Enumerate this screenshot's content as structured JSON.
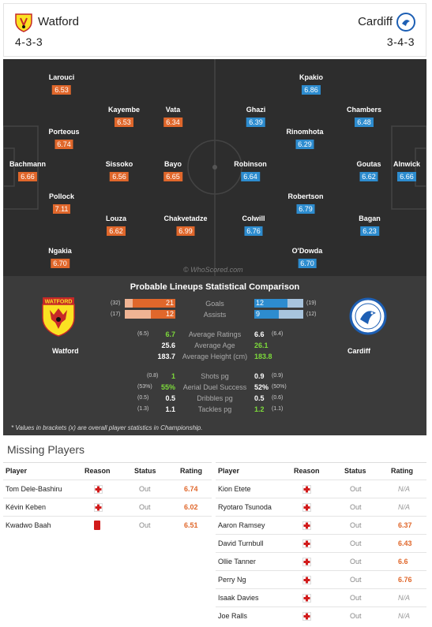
{
  "home": {
    "name": "Watford",
    "formation": "4-3-3",
    "players": [
      {
        "name": "Larouci",
        "rating": "6.53"
      },
      {
        "name": "Kayembe",
        "rating": "6.53"
      },
      {
        "name": "Vata",
        "rating": "6.34"
      },
      {
        "name": "Porteous",
        "rating": "6.74"
      },
      {
        "name": "Bachmann",
        "rating": "6.66"
      },
      {
        "name": "Sissoko",
        "rating": "6.56"
      },
      {
        "name": "Bayo",
        "rating": "6.65"
      },
      {
        "name": "Pollock",
        "rating": "7.11"
      },
      {
        "name": "Louza",
        "rating": "6.62"
      },
      {
        "name": "Chakvetadze",
        "rating": "6.99"
      },
      {
        "name": "Ngakia",
        "rating": "6.70"
      }
    ]
  },
  "away": {
    "name": "Cardiff",
    "formation": "3-4-3",
    "players": [
      {
        "name": "Kpakio",
        "rating": "6.86"
      },
      {
        "name": "Ghazi",
        "rating": "6.39"
      },
      {
        "name": "Chambers",
        "rating": "6.48"
      },
      {
        "name": "Rinomhota",
        "rating": "6.29"
      },
      {
        "name": "Robinson",
        "rating": "6.64"
      },
      {
        "name": "Goutas",
        "rating": "6.62"
      },
      {
        "name": "Alnwick",
        "rating": "6.66"
      },
      {
        "name": "Robertson",
        "rating": "6.79"
      },
      {
        "name": "Colwill",
        "rating": "6.76"
      },
      {
        "name": "Bagan",
        "rating": "6.23"
      },
      {
        "name": "O'Dowda",
        "rating": "6.70"
      }
    ]
  },
  "watermark": "© WhoScored.com",
  "comparison": {
    "title": "Probable Lineups Statistical Comparison",
    "home_label": "Watford",
    "away_label": "Cardiff",
    "bars": [
      {
        "label": "Goals",
        "home": 21,
        "home_overall": "(32)",
        "away": 12,
        "away_overall": "(19)"
      },
      {
        "label": "Assists",
        "home": 12,
        "home_overall": "(17)",
        "away": 9,
        "away_overall": "(12)"
      }
    ],
    "rows": [
      {
        "label": "Average Ratings",
        "home": "6.7",
        "home_overall": "(6.5)",
        "home_better": true,
        "away": "6.6",
        "away_overall": "(6.4)",
        "away_better": false
      },
      {
        "label": "Average Age",
        "home": "25.6",
        "home_overall": "",
        "home_better": false,
        "away": "26.1",
        "away_overall": "",
        "away_better": true
      },
      {
        "label": "Average Height (cm)",
        "home": "183.7",
        "home_overall": "",
        "home_better": false,
        "away": "183.8",
        "away_overall": "",
        "away_better": true
      },
      {
        "label": "Shots pg",
        "home": "1",
        "home_overall": "(0.8)",
        "home_better": true,
        "away": "0.9",
        "away_overall": "(0.9)",
        "away_better": false
      },
      {
        "label": "Aerial Duel Success",
        "home": "55%",
        "home_overall": "(53%)",
        "home_better": true,
        "away": "52%",
        "away_overall": "(50%)",
        "away_better": false
      },
      {
        "label": "Dribbles pg",
        "home": "0.5",
        "home_overall": "(0.5)",
        "home_better": false,
        "away": "0.5",
        "away_overall": "(0.6)",
        "away_better": false
      },
      {
        "label": "Tackles pg",
        "home": "1.1",
        "home_overall": "(1.3)",
        "home_better": false,
        "away": "1.2",
        "away_overall": "(1.1)",
        "away_better": true
      }
    ],
    "footnote": "* Values in brackets (x) are overall player statistics in Championship."
  },
  "missing": {
    "title": "Missing Players",
    "headers": {
      "player": "Player",
      "reason": "Reason",
      "status": "Status",
      "rating": "Rating"
    },
    "home": [
      {
        "player": "Tom Dele-Bashiru",
        "reason": "injury",
        "status": "Out",
        "rating": "6.74"
      },
      {
        "player": "Kévin Keben",
        "reason": "injury",
        "status": "Out",
        "rating": "6.02"
      },
      {
        "player": "Kwadwo Baah",
        "reason": "red-card",
        "status": "Out",
        "rating": "6.51"
      }
    ],
    "away": [
      {
        "player": "Kion Etete",
        "reason": "injury",
        "status": "Out",
        "rating": "N/A"
      },
      {
        "player": "Ryotaro Tsunoda",
        "reason": "injury",
        "status": "Out",
        "rating": "N/A"
      },
      {
        "player": "Aaron Ramsey",
        "reason": "injury",
        "status": "Out",
        "rating": "6.37"
      },
      {
        "player": "David Turnbull",
        "reason": "injury",
        "status": "Out",
        "rating": "6.43"
      },
      {
        "player": "Ollie Tanner",
        "reason": "injury",
        "status": "Out",
        "rating": "6.6"
      },
      {
        "player": "Perry Ng",
        "reason": "injury",
        "status": "Out",
        "rating": "6.76"
      },
      {
        "player": "Isaak Davies",
        "reason": "injury",
        "status": "Out",
        "rating": "N/A"
      },
      {
        "player": "Joe Ralls",
        "reason": "injury",
        "status": "Out",
        "rating": "N/A"
      }
    ]
  },
  "colors": {
    "home": "#e0672b",
    "away": "#2d8ccf",
    "better": "#7ddb3b"
  }
}
